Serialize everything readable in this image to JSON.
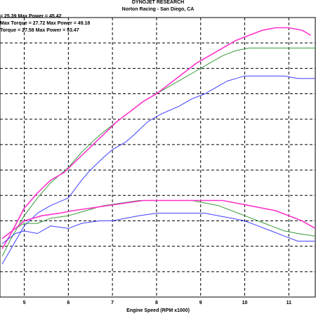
{
  "header": {
    "company": "DYNOJET RESEARCH",
    "location": "Norton Racing - San Diego, CA"
  },
  "legend": [
    "= 25.39 Max Power = 45.42",
    "Max Torque = 27.72 Max Power = 49.18",
    "Torque = 27.58 Max Power = 53.47"
  ],
  "colors": {
    "background": "#ffffff",
    "grid": "#000000",
    "run1": "#3f3fff",
    "run2": "#3a9a3a",
    "run3": "#ff33cc"
  },
  "chart_data": {
    "type": "line",
    "xlabel": "Engine Speed (RPM x1000)",
    "ylabel": "",
    "xlim": [
      4.45,
      11.6
    ],
    "ylim": [
      0,
      11
    ],
    "grid": true,
    "x_ticks": [
      5,
      6,
      7,
      8,
      9,
      10,
      11
    ],
    "series": [
      {
        "color_key": "run1",
        "curve": "power",
        "points": [
          [
            4.5,
            1.3
          ],
          [
            4.7,
            1.9
          ],
          [
            5.0,
            2.8
          ],
          [
            5.3,
            3.3
          ],
          [
            5.6,
            3.6
          ],
          [
            6.0,
            3.9
          ],
          [
            6.3,
            4.6
          ],
          [
            6.5,
            5.0
          ],
          [
            6.8,
            5.5
          ],
          [
            7.0,
            5.8
          ],
          [
            7.3,
            6.1
          ],
          [
            7.5,
            6.4
          ],
          [
            7.8,
            6.9
          ],
          [
            8.1,
            7.2
          ],
          [
            8.5,
            7.5
          ],
          [
            8.8,
            7.8
          ],
          [
            9.1,
            8.0
          ],
          [
            9.4,
            8.3
          ],
          [
            9.6,
            8.5
          ],
          [
            9.8,
            8.6
          ],
          [
            10.0,
            8.7
          ],
          [
            10.3,
            8.7
          ],
          [
            10.6,
            8.7
          ],
          [
            10.9,
            8.7
          ],
          [
            11.2,
            8.6
          ],
          [
            11.6,
            8.6
          ]
        ]
      },
      {
        "color_key": "run2",
        "curve": "power",
        "points": [
          [
            4.5,
            1.6
          ],
          [
            4.7,
            2.3
          ],
          [
            5.0,
            3.2
          ],
          [
            5.3,
            3.9
          ],
          [
            5.6,
            4.5
          ],
          [
            6.0,
            5.1
          ],
          [
            6.3,
            5.7
          ],
          [
            6.6,
            6.2
          ],
          [
            6.8,
            6.5
          ],
          [
            7.1,
            6.9
          ],
          [
            7.4,
            7.3
          ],
          [
            7.7,
            7.7
          ],
          [
            8.0,
            8.0
          ],
          [
            8.3,
            8.3
          ],
          [
            8.6,
            8.6
          ],
          [
            8.9,
            8.9
          ],
          [
            9.2,
            9.2
          ],
          [
            9.5,
            9.5
          ],
          [
            9.8,
            9.7
          ],
          [
            10.1,
            9.8
          ],
          [
            10.4,
            9.8
          ],
          [
            10.7,
            9.8
          ],
          [
            11.0,
            9.8
          ],
          [
            11.3,
            9.8
          ],
          [
            11.6,
            9.8
          ]
        ]
      },
      {
        "color_key": "run3",
        "curve": "power",
        "points": [
          [
            4.5,
            1.9
          ],
          [
            4.7,
            2.5
          ],
          [
            5.0,
            3.5
          ],
          [
            5.3,
            4.1
          ],
          [
            5.6,
            4.6
          ],
          [
            5.9,
            4.9
          ],
          [
            6.2,
            5.4
          ],
          [
            6.5,
            5.9
          ],
          [
            6.8,
            6.4
          ],
          [
            7.1,
            6.9
          ],
          [
            7.4,
            7.3
          ],
          [
            7.7,
            7.7
          ],
          [
            8.0,
            8.0
          ],
          [
            8.3,
            8.4
          ],
          [
            8.6,
            8.8
          ],
          [
            8.9,
            9.2
          ],
          [
            9.2,
            9.5
          ],
          [
            9.5,
            9.8
          ],
          [
            9.8,
            10.1
          ],
          [
            10.1,
            10.3
          ],
          [
            10.4,
            10.5
          ],
          [
            10.7,
            10.6
          ],
          [
            11.0,
            10.6
          ],
          [
            11.3,
            10.5
          ],
          [
            11.5,
            10.3
          ]
        ]
      },
      {
        "color_key": "run1",
        "curve": "torque",
        "points": [
          [
            4.5,
            2.1
          ],
          [
            4.8,
            2.5
          ],
          [
            5.0,
            2.6
          ],
          [
            5.3,
            2.5
          ],
          [
            5.6,
            2.8
          ],
          [
            6.0,
            2.7
          ],
          [
            6.3,
            2.9
          ],
          [
            6.7,
            3.0
          ],
          [
            7.0,
            3.0
          ],
          [
            7.3,
            3.1
          ],
          [
            7.6,
            3.2
          ],
          [
            8.0,
            3.3
          ],
          [
            8.4,
            3.3
          ],
          [
            8.8,
            3.3
          ],
          [
            9.1,
            3.3
          ],
          [
            9.4,
            3.2
          ],
          [
            9.7,
            3.1
          ],
          [
            10.0,
            3.0
          ],
          [
            10.3,
            2.8
          ],
          [
            10.6,
            2.6
          ],
          [
            10.9,
            2.4
          ],
          [
            11.2,
            2.2
          ],
          [
            11.6,
            2.2
          ]
        ]
      },
      {
        "color_key": "run2",
        "curve": "torque",
        "points": [
          [
            4.5,
            2.3
          ],
          [
            4.8,
            2.7
          ],
          [
            5.0,
            2.9
          ],
          [
            5.3,
            2.9
          ],
          [
            5.6,
            3.1
          ],
          [
            6.0,
            3.2
          ],
          [
            6.4,
            3.4
          ],
          [
            6.8,
            3.6
          ],
          [
            7.2,
            3.7
          ],
          [
            7.6,
            3.8
          ],
          [
            8.0,
            3.8
          ],
          [
            8.4,
            3.8
          ],
          [
            8.8,
            3.8
          ],
          [
            9.1,
            3.7
          ],
          [
            9.4,
            3.6
          ],
          [
            9.7,
            3.4
          ],
          [
            10.0,
            3.2
          ],
          [
            10.3,
            3.0
          ],
          [
            10.6,
            2.8
          ],
          [
            10.9,
            2.6
          ],
          [
            11.2,
            2.5
          ],
          [
            11.6,
            2.4
          ]
        ]
      },
      {
        "color_key": "run3",
        "curve": "torque",
        "points": [
          [
            4.5,
            2.3
          ],
          [
            4.8,
            2.7
          ],
          [
            5.0,
            3.0
          ],
          [
            5.4,
            3.2
          ],
          [
            5.8,
            3.3
          ],
          [
            6.1,
            3.4
          ],
          [
            6.5,
            3.5
          ],
          [
            6.9,
            3.6
          ],
          [
            7.3,
            3.7
          ],
          [
            7.7,
            3.8
          ],
          [
            8.1,
            3.8
          ],
          [
            8.5,
            3.8
          ],
          [
            8.9,
            3.8
          ],
          [
            9.2,
            3.8
          ],
          [
            9.5,
            3.8
          ],
          [
            9.8,
            3.7
          ],
          [
            10.1,
            3.6
          ],
          [
            10.4,
            3.5
          ],
          [
            10.7,
            3.4
          ],
          [
            11.0,
            3.2
          ],
          [
            11.3,
            3.0
          ],
          [
            11.6,
            2.7
          ]
        ]
      }
    ]
  }
}
